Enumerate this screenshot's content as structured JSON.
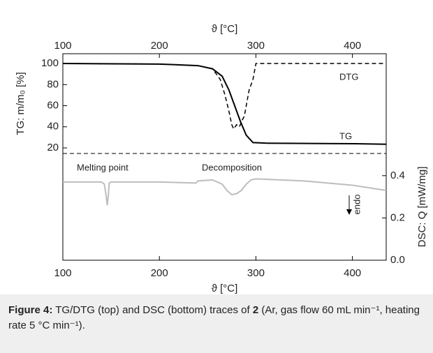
{
  "chart_data": [
    {
      "type": "line",
      "x_label": "ϑ [°C]",
      "y_label": "TG: m/m₀ [%]",
      "xlim": [
        100,
        435
      ],
      "xticks": [
        100,
        200,
        300,
        400
      ],
      "ylim": [
        14.7,
        109.3
      ],
      "yticks": [
        20,
        40,
        60,
        80,
        100
      ],
      "series": [
        {
          "name": "TG",
          "color": "#000000",
          "dash": false,
          "x": [
            100,
            200,
            240,
            255,
            265,
            272,
            278,
            284,
            290,
            297,
            310,
            400,
            435
          ],
          "values": [
            100,
            99.5,
            98,
            95,
            88,
            75,
            60,
            45,
            32,
            25,
            24.5,
            24,
            23.5
          ]
        },
        {
          "name": "DTG",
          "color": "#000000",
          "dash": true,
          "x": [
            100,
            200,
            240,
            255,
            263,
            268,
            272,
            275,
            277,
            280,
            283,
            285,
            288,
            290,
            293,
            297,
            300,
            435
          ],
          "values": [
            100,
            99.5,
            98,
            95,
            85,
            70,
            55,
            42,
            38,
            42,
            40,
            45,
            50,
            60,
            75,
            85,
            100,
            100
          ]
        }
      ]
    },
    {
      "type": "line",
      "x_label": "ϑ [°C]",
      "y_label": "DSC: Q [mW/mg]",
      "xlim": [
        100,
        435
      ],
      "xticks": [
        100,
        200,
        300,
        400
      ],
      "ylim": [
        0,
        0.505
      ],
      "yticks": [
        {
          "value": 0,
          "label": "0.0"
        },
        0.2,
        0.4
      ],
      "annotations": [
        "Melting point",
        "Decomposition",
        "endo"
      ],
      "series": [
        {
          "color": "#bdbdbd",
          "dash": false,
          "x": [
            100,
            140,
            143,
            145,
            146,
            147,
            148,
            150,
            200,
            238,
            240,
            255,
            265,
            270,
            275,
            280,
            285,
            290,
            295,
            300,
            350,
            400,
            435
          ],
          "values": [
            0.37,
            0.37,
            0.36,
            0.3,
            0.26,
            0.3,
            0.365,
            0.37,
            0.37,
            0.365,
            0.375,
            0.38,
            0.36,
            0.33,
            0.31,
            0.315,
            0.33,
            0.36,
            0.38,
            0.385,
            0.375,
            0.355,
            0.33
          ]
        }
      ]
    }
  ],
  "caption": {
    "label": "Figure 4:",
    "text_1": "TG/DTG (top) and DSC (bottom) traces of",
    "compound": "2",
    "text_2": "(Ar, gas flow 60 mL min⁻¹, heating rate 5 °C min⁻¹)."
  }
}
